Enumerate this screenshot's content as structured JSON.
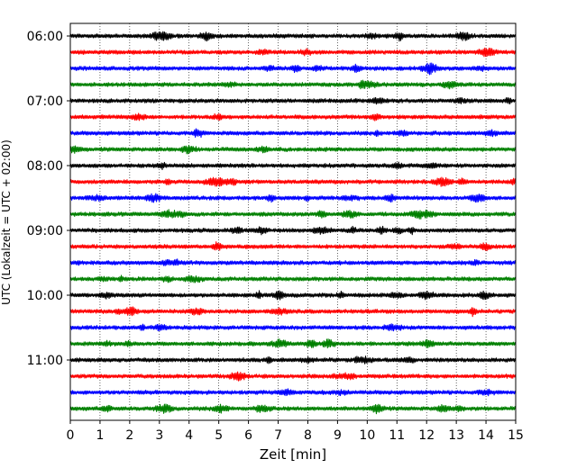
{
  "chart_data": {
    "type": "line",
    "title": "",
    "xlabel": "Zeit  [min]",
    "ylabel": "UTC (Lokalzeit = UTC + 02:00)",
    "xlim": [
      0,
      15
    ],
    "x_ticks": [
      0,
      1,
      2,
      3,
      4,
      5,
      6,
      7,
      8,
      9,
      10,
      11,
      12,
      13,
      14,
      15
    ],
    "y_ticks": [
      "06:00",
      "07:00",
      "08:00",
      "09:00",
      "10:00",
      "11:00"
    ],
    "grid": "vertical dotted lines at each minute",
    "trace_interval_min": 15,
    "colors": [
      "#000000",
      "#ff0000",
      "#0000ff",
      "#008000"
    ],
    "traces": [
      {
        "start": "06:00",
        "color": "#000000"
      },
      {
        "start": "06:15",
        "color": "#ff0000"
      },
      {
        "start": "06:30",
        "color": "#0000ff"
      },
      {
        "start": "06:45",
        "color": "#008000"
      },
      {
        "start": "07:00",
        "color": "#000000"
      },
      {
        "start": "07:15",
        "color": "#ff0000"
      },
      {
        "start": "07:30",
        "color": "#0000ff"
      },
      {
        "start": "07:45",
        "color": "#008000"
      },
      {
        "start": "08:00",
        "color": "#000000"
      },
      {
        "start": "08:15",
        "color": "#ff0000"
      },
      {
        "start": "08:30",
        "color": "#0000ff"
      },
      {
        "start": "08:45",
        "color": "#008000"
      },
      {
        "start": "09:00",
        "color": "#000000"
      },
      {
        "start": "09:15",
        "color": "#ff0000"
      },
      {
        "start": "09:30",
        "color": "#0000ff"
      },
      {
        "start": "09:45",
        "color": "#008000"
      },
      {
        "start": "10:00",
        "color": "#000000"
      },
      {
        "start": "10:15",
        "color": "#ff0000"
      },
      {
        "start": "10:30",
        "color": "#0000ff"
      },
      {
        "start": "10:45",
        "color": "#008000"
      },
      {
        "start": "11:00",
        "color": "#000000"
      },
      {
        "start": "11:15",
        "color": "#ff0000"
      },
      {
        "start": "11:30",
        "color": "#0000ff"
      },
      {
        "start": "11:45",
        "color": "#008000"
      }
    ]
  }
}
